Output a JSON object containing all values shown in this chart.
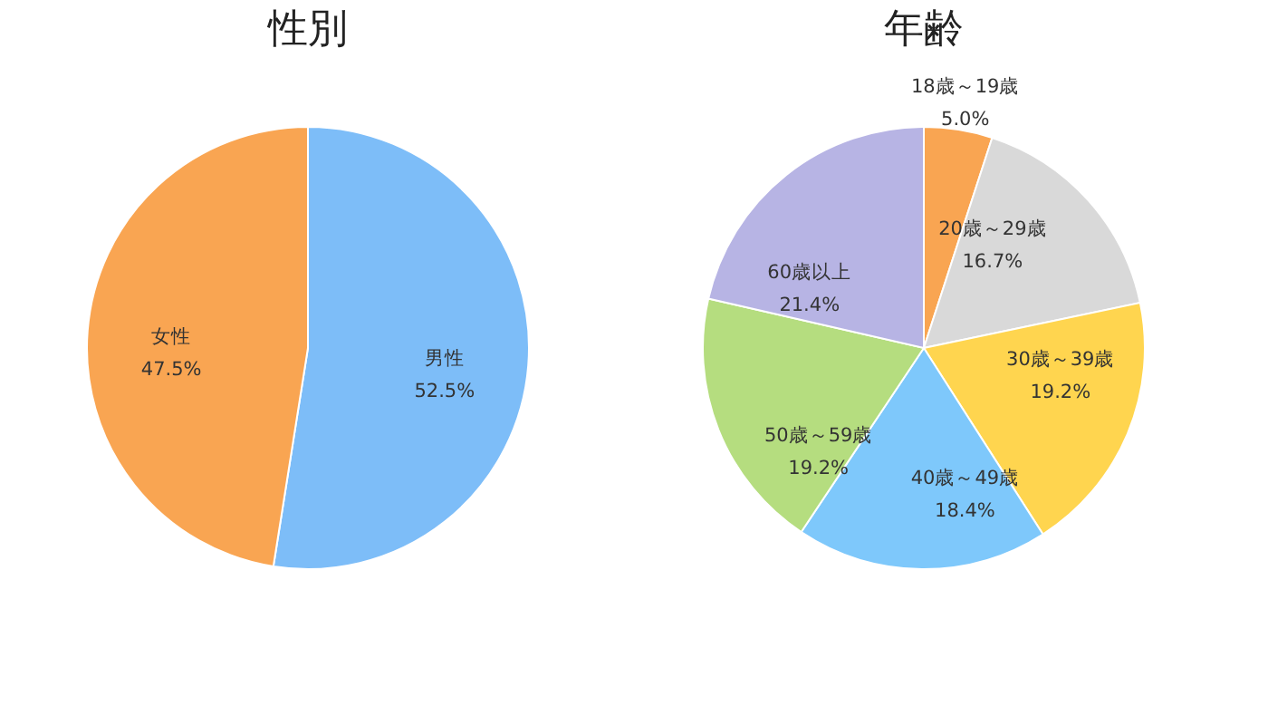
{
  "chart_data": [
    {
      "type": "pie",
      "title": "性別",
      "categories": [
        "男性",
        "女性"
      ],
      "values": [
        52.5,
        47.5
      ],
      "value_labels": [
        "52.5%",
        "47.5%"
      ],
      "colors": [
        "#7dbdf8",
        "#f9a552"
      ]
    },
    {
      "type": "pie",
      "title": "年齢",
      "categories": [
        "18歳～19歳",
        "20歳～29歳",
        "30歳～39歳",
        "40歳～49歳",
        "50歳～59歳",
        "60歳以上"
      ],
      "values": [
        5.0,
        16.7,
        19.2,
        18.4,
        19.2,
        21.4
      ],
      "value_labels": [
        "5.0%",
        "16.7%",
        "19.2%",
        "18.4%",
        "19.2%",
        "21.4%"
      ],
      "colors": [
        "#f9a552",
        "#d9d9d9",
        "#ffd54f",
        "#7ec8fb",
        "#b5dd7f",
        "#b7b4e4"
      ]
    }
  ]
}
